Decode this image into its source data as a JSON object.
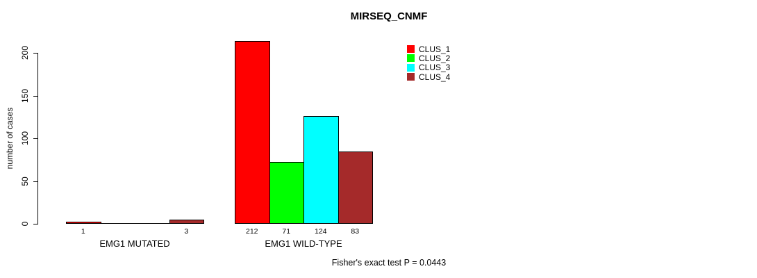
{
  "chart_data": {
    "type": "bar",
    "title": "MIRSEQ_CNMF",
    "xlabel": "",
    "ylabel": "number of cases",
    "ylim": [
      0,
      200
    ],
    "y_ticks": [
      0,
      50,
      100,
      150,
      200
    ],
    "grid": false,
    "legend_position": "top-right",
    "categories": [
      "EMG1 MUTATED",
      "EMG1 WILD-TYPE"
    ],
    "series": [
      {
        "name": "CLUS_1",
        "color": "#FF0000",
        "values": [
          1,
          212
        ],
        "value_labels": [
          "1",
          "212"
        ]
      },
      {
        "name": "CLUS_2",
        "color": "#00FF00",
        "values": [
          0,
          71
        ],
        "value_labels": [
          "",
          "71"
        ]
      },
      {
        "name": "CLUS_3",
        "color": "#00FFFF",
        "values": [
          0,
          124
        ],
        "value_labels": [
          "",
          "124"
        ]
      },
      {
        "name": "CLUS_4",
        "color": "#A52A2A",
        "values": [
          3,
          83
        ],
        "value_labels": [
          "3",
          "83"
        ]
      }
    ],
    "annotation": "Fisher's exact test P = 0.0443"
  },
  "colors": {
    "bar_border": "#000000",
    "axis": "#000000",
    "text": "#000000",
    "background": "#FFFFFF"
  }
}
